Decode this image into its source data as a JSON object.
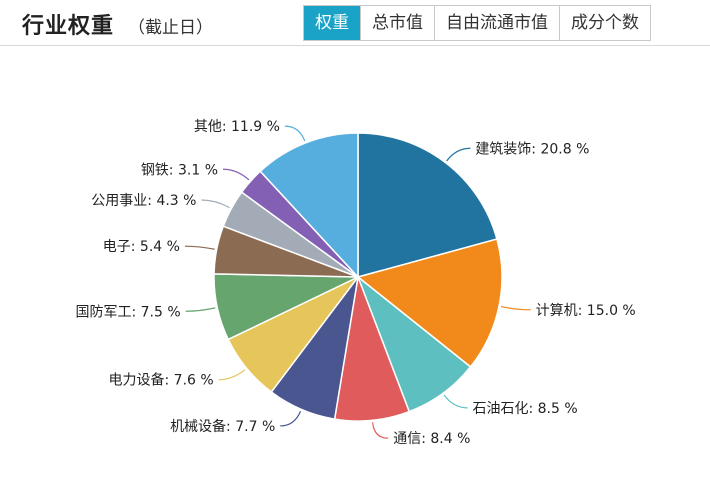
{
  "header": {
    "title": "行业权重",
    "subtitle": "（截止日）"
  },
  "tabs": [
    {
      "label": "权重",
      "active": true
    },
    {
      "label": "总市值",
      "active": false
    },
    {
      "label": "自由流通市值",
      "active": false
    },
    {
      "label": "成分个数",
      "active": false
    }
  ],
  "chart_data": {
    "type": "pie",
    "unit": "%",
    "slices": [
      {
        "label": "建筑装饰",
        "value": 20.8,
        "color": "#2274a0"
      },
      {
        "label": "计算机",
        "value": 15.0,
        "color": "#f28a1b"
      },
      {
        "label": "石油石化",
        "value": 8.5,
        "color": "#5dbfbf"
      },
      {
        "label": "通信",
        "value": 8.4,
        "color": "#e05b5b"
      },
      {
        "label": "机械设备",
        "value": 7.7,
        "color": "#4a5690"
      },
      {
        "label": "电力设备",
        "value": 7.6,
        "color": "#e6c55a"
      },
      {
        "label": "国防军工",
        "value": 7.5,
        "color": "#67a56e"
      },
      {
        "label": "电子",
        "value": 5.4,
        "color": "#8c6b53"
      },
      {
        "label": "公用事业",
        "value": 4.3,
        "color": "#a3acb6"
      },
      {
        "label": "钢铁",
        "value": 3.1,
        "color": "#8460b5"
      },
      {
        "label": "其他",
        "value": 11.9,
        "color": "#56aede"
      }
    ]
  }
}
